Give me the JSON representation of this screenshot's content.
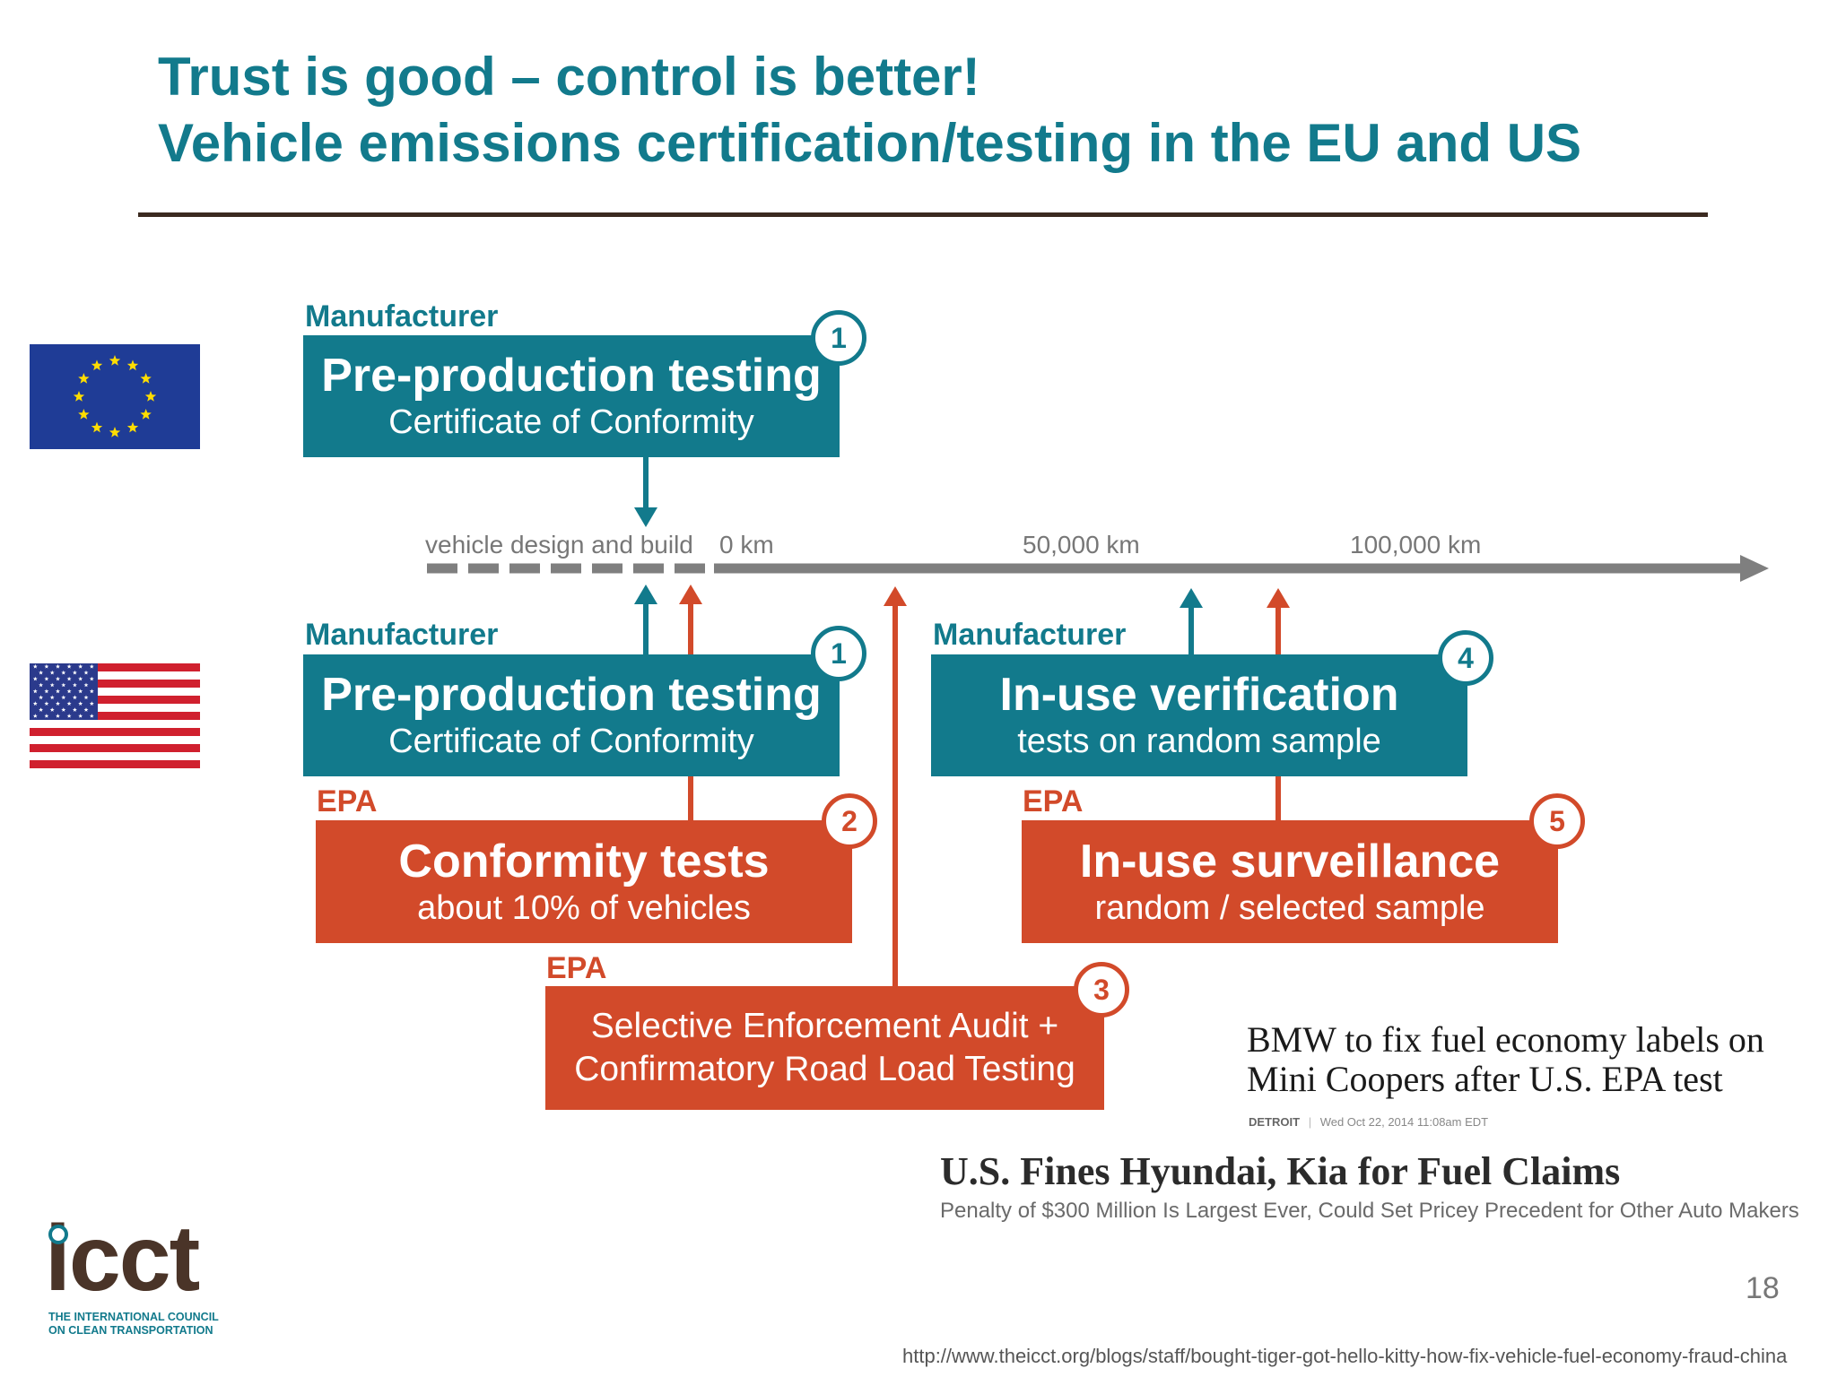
{
  "slide": {
    "title_line1": "Trust is good – control is better!",
    "title_line2": "Vehicle emissions certification/testing in the EU and US",
    "page_number": "18",
    "source_url": "http://www.theicct.org/blogs/staff/bought-tiger-got-hello-kitty-how-fix-vehicle-fuel-economy-fraud-china"
  },
  "colors": {
    "teal": "#127a8c",
    "red": "#d24a2a",
    "brown": "#4a3428",
    "timeline_gray": "#7f7f7f"
  },
  "flags": {
    "eu": "eu-flag-icon",
    "us": "us-flag-icon"
  },
  "timeline": {
    "pre_label": "vehicle design and build",
    "markers": [
      "0 km",
      "50,000 km",
      "100,000 km"
    ]
  },
  "eu": {
    "actor": "Manufacturer",
    "box": {
      "title": "Pre-production testing",
      "subtitle": "Certificate of Conformity",
      "badge": "1"
    }
  },
  "us": {
    "preprod": {
      "actor": "Manufacturer",
      "title": "Pre-production testing",
      "subtitle": "Certificate of Conformity",
      "badge": "1"
    },
    "conformity": {
      "actor": "EPA",
      "title": "Conformity tests",
      "subtitle": "about 10% of vehicles",
      "badge": "2"
    },
    "sea": {
      "actor": "EPA",
      "line1": "Selective Enforcement Audit +",
      "line2": "Confirmatory Road Load Testing",
      "badge": "3"
    },
    "inuse_verif": {
      "actor": "Manufacturer",
      "title": "In-use verification",
      "subtitle": "tests on random sample",
      "badge": "4"
    },
    "inuse_surv": {
      "actor": "EPA",
      "title": "In-use surveillance",
      "subtitle": "random / selected sample",
      "badge": "5"
    }
  },
  "news": {
    "bmw": {
      "headline_line1": "BMW to fix fuel economy labels on",
      "headline_line2": "Mini Coopers after U.S. EPA test",
      "dateline": "DETROIT",
      "date": "Wed Oct 22, 2014 11:08am EDT"
    },
    "hyundai": {
      "headline": "U.S. Fines Hyundai, Kia for Fuel Claims",
      "subhead": "Penalty of $300 Million Is Largest Ever, Could Set Pricey Precedent for Other Auto Makers"
    }
  },
  "logo": {
    "word": "icct",
    "sub_line1": "THE INTERNATIONAL COUNCIL",
    "sub_line2": "ON CLEAN TRANSPORTATION"
  }
}
